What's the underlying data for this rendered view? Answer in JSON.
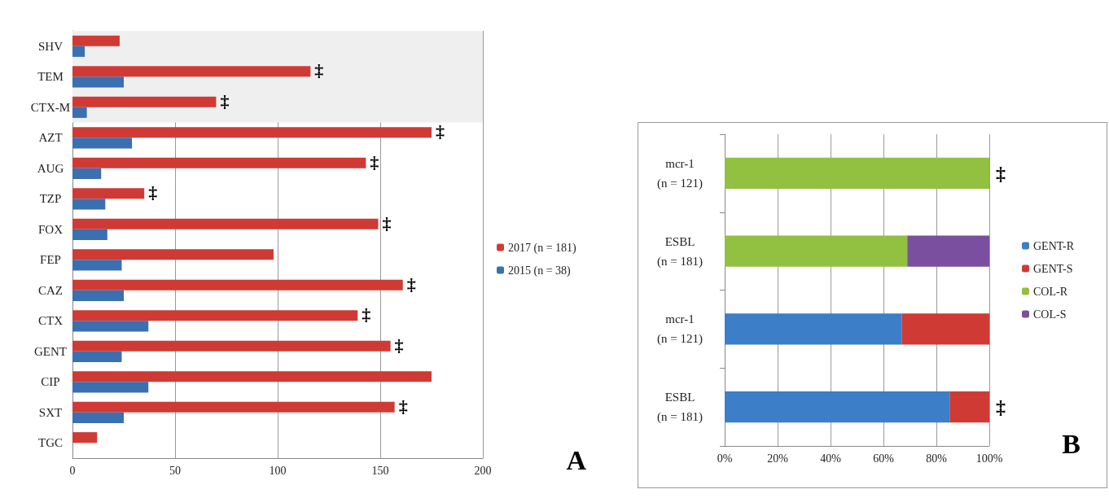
{
  "chart_data": [
    {
      "type": "bar",
      "orientation": "horizontal",
      "categories": [
        "SHV",
        "TEM",
        "CTX-M",
        "AZT",
        "AUG",
        "TZP",
        "FOX",
        "FEP",
        "CAZ",
        "CTX",
        "GENT",
        "CIP",
        "SXT",
        "TGC"
      ],
      "series": [
        {
          "name": "2017 (n = 181)",
          "color": "#d03a34",
          "values": [
            23,
            116,
            70,
            175,
            143,
            35,
            149,
            98,
            161,
            139,
            155,
            175,
            157,
            12
          ]
        },
        {
          "name": "2015 (n = 38)",
          "color": "#3a6fb0",
          "values": [
            6,
            25,
            7,
            29,
            14,
            16,
            17,
            24,
            25,
            37,
            24,
            37,
            25,
            0
          ]
        }
      ],
      "xlim": [
        0,
        200
      ],
      "xticks": [
        0,
        50,
        100,
        150,
        200
      ],
      "grid": "x",
      "legend": "right",
      "bands": [
        {
          "axis": "y",
          "from": "SHV",
          "to": "CTX-M",
          "color": "#efefef"
        }
      ],
      "annotations": [
        {
          "text": "‡",
          "x": 116,
          "y": "TEM"
        },
        {
          "text": "‡",
          "x": 70,
          "y": "CTX-M"
        },
        {
          "text": "‡",
          "x": 175,
          "y": "AZT"
        },
        {
          "text": "‡",
          "x": 143,
          "y": "AUG"
        },
        {
          "text": "‡",
          "x": 35,
          "y": "TZP"
        },
        {
          "text": "‡",
          "x": 149,
          "y": "FOX"
        },
        {
          "text": "‡",
          "x": 161,
          "y": "CAZ"
        },
        {
          "text": "‡",
          "x": 139,
          "y": "CTX"
        },
        {
          "text": "‡",
          "x": 155,
          "y": "GENT"
        },
        {
          "text": "‡",
          "x": 157,
          "y": "SXT"
        },
        "A"
      ]
    },
    {
      "type": "bar",
      "orientation": "horizontal",
      "stacked": true,
      "categories": [
        "mcr-1\n(n = 121)",
        "ESBL\n(n = 181)",
        "mcr-1\n(n = 121)",
        "ESBL\n(n = 181)"
      ],
      "series": [
        {
          "name": "GENT-R",
          "color": "#3c7ec8",
          "values": [
            null,
            null,
            67,
            85
          ]
        },
        {
          "name": "GENT-S",
          "color": "#d03a34",
          "values": [
            null,
            null,
            33,
            15
          ]
        },
        {
          "name": "COL-R",
          "color": "#92c040",
          "values": [
            100,
            69,
            null,
            null
          ]
        },
        {
          "name": "COL-S",
          "color": "#7a4fa0",
          "values": [
            null,
            31,
            null,
            null
          ]
        }
      ],
      "xlim": [
        0,
        100
      ],
      "xticks": [
        {
          "value": 0,
          "label": "0%"
        },
        {
          "value": 20,
          "label": "20%"
        },
        {
          "value": 40,
          "label": "40%"
        },
        {
          "value": 60,
          "label": "60%"
        },
        {
          "value": 80,
          "label": "80%"
        },
        {
          "value": 100,
          "label": "100%"
        }
      ],
      "grid": "x",
      "legend": "right",
      "annotations": [
        "‡",
        "‡",
        "B"
      ]
    }
  ]
}
